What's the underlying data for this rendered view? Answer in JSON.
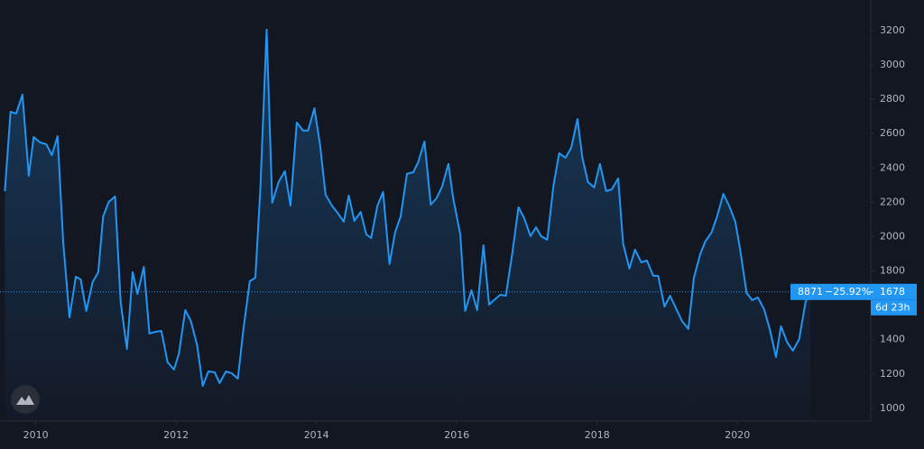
{
  "chart_data": {
    "type": "area",
    "x": [
      2009.56,
      2009.64,
      2009.72,
      2009.81,
      2009.9,
      2009.97,
      2010.06,
      2010.15,
      2010.23,
      2010.31,
      2010.39,
      2010.48,
      2010.57,
      2010.64,
      2010.72,
      2010.81,
      2010.89,
      2010.96,
      2011.04,
      2011.13,
      2011.21,
      2011.3,
      2011.38,
      2011.45,
      2011.54,
      2011.62,
      2011.71,
      2011.79,
      2011.88,
      2011.97,
      2012.04,
      2012.13,
      2012.21,
      2012.3,
      2012.38,
      2012.46,
      2012.55,
      2012.62,
      2012.71,
      2012.79,
      2012.88,
      2012.96,
      2013.05,
      2013.13,
      2013.2,
      2013.29,
      2013.37,
      2013.46,
      2013.55,
      2013.63,
      2013.72,
      2013.81,
      2013.88,
      2013.97,
      2014.05,
      2014.13,
      2014.22,
      2014.3,
      2014.39,
      2014.46,
      2014.54,
      2014.63,
      2014.71,
      2014.78,
      2014.87,
      2014.95,
      2015.04,
      2015.12,
      2015.2,
      2015.29,
      2015.38,
      2015.45,
      2015.54,
      2015.63,
      2015.71,
      2015.79,
      2015.88,
      2015.95,
      2016.05,
      2016.12,
      2016.21,
      2016.29,
      2016.38,
      2016.46,
      2016.53,
      2016.62,
      2016.7,
      2016.79,
      2016.88,
      2016.96,
      2017.05,
      2017.13,
      2017.2,
      2017.29,
      2017.38,
      2017.46,
      2017.55,
      2017.63,
      2017.72,
      2017.79,
      2017.87,
      2017.96,
      2018.04,
      2018.13,
      2018.21,
      2018.3,
      2018.37,
      2018.46,
      2018.54,
      2018.63,
      2018.71,
      2018.8,
      2018.87,
      2018.96,
      2019.04,
      2019.13,
      2019.21,
      2019.3,
      2019.38,
      2019.47,
      2019.54,
      2019.63,
      2019.71,
      2019.8,
      2019.88,
      2019.97,
      2020.04,
      2020.13,
      2020.21,
      2020.29,
      2020.38,
      2020.46,
      2020.55,
      2020.62,
      2020.71,
      2020.79,
      2020.88,
      2020.97,
      2021.04
    ],
    "series": [
      {
        "color": "#2196f3",
        "values": [
          2265,
          2727,
          2717,
          2827,
          2354,
          2580,
          2549,
          2538,
          2475,
          2585,
          1971,
          1530,
          1766,
          1751,
          1567,
          1735,
          1793,
          2118,
          2202,
          2234,
          1619,
          1346,
          1793,
          1667,
          1824,
          1436,
          1446,
          1451,
          1268,
          1226,
          1320,
          1572,
          1509,
          1367,
          1131,
          1215,
          1210,
          1147,
          1215,
          1205,
          1173,
          1462,
          1740,
          1761,
          2276,
          3205,
          2197,
          2318,
          2381,
          2181,
          2664,
          2617,
          2617,
          2748,
          2538,
          2244,
          2181,
          2139,
          2087,
          2239,
          2092,
          2144,
          2013,
          1992,
          2181,
          2260,
          1840,
          2024,
          2118,
          2365,
          2375,
          2433,
          2554,
          2186,
          2223,
          2291,
          2423,
          2223,
          2013,
          1567,
          1688,
          1572,
          1950,
          1604,
          1630,
          1661,
          1656,
          1898,
          2171,
          2108,
          2003,
          2055,
          2003,
          1982,
          2302,
          2486,
          2459,
          2517,
          2685,
          2459,
          2318,
          2286,
          2423,
          2265,
          2276,
          2339,
          1961,
          1814,
          1924,
          1850,
          1861,
          1772,
          1772,
          1593,
          1656,
          1577,
          1509,
          1462,
          1761,
          1898,
          1971,
          2024,
          2118,
          2249,
          2181,
          2087,
          1919,
          1672,
          1630,
          1646,
          1577,
          1462,
          1299,
          1478,
          1383,
          1336,
          1404,
          1619,
          1682
        ]
      }
    ],
    "xlim": [
      2009.49,
      2021.9
    ],
    "xticks": [
      2010,
      2012,
      2014,
      2016,
      2018,
      2020
    ],
    "ylim": [
      926,
      3378
    ],
    "yticks": [
      1000,
      1200,
      1400,
      1600,
      1800,
      2000,
      2200,
      2400,
      2600,
      2800,
      3000,
      3200
    ],
    "last_price": 1678,
    "symbol_label": "8871",
    "change_label": "−25.92%",
    "countdown": "6d 23h"
  }
}
